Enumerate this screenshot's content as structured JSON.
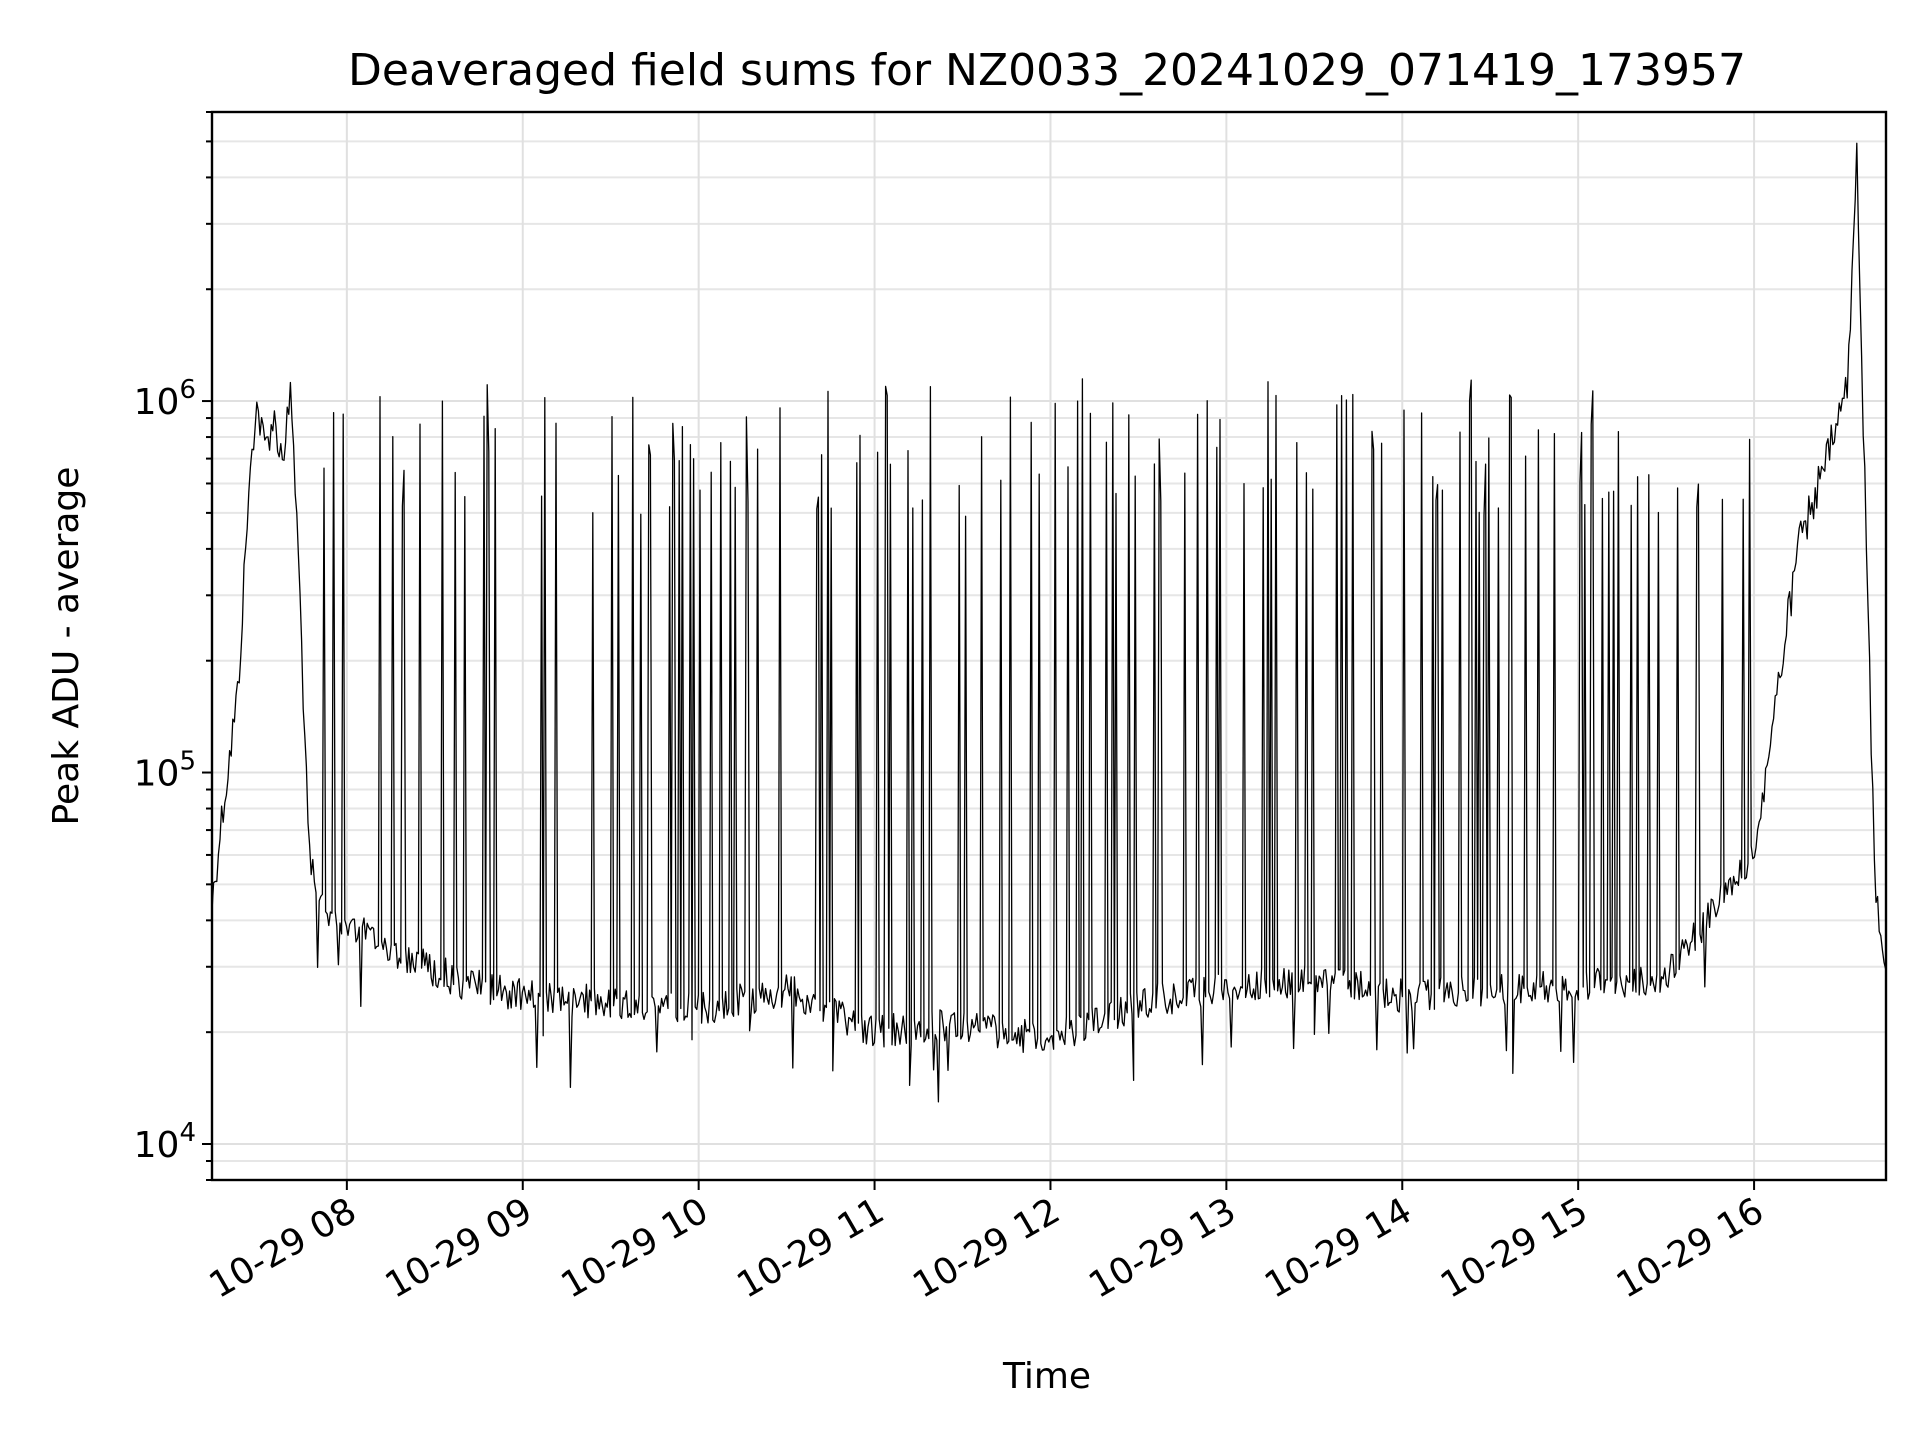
{
  "chart_data": {
    "type": "line",
    "title": "Deaveraged field sums for NZ0033_20241029_071419_173957",
    "xlabel": "Time",
    "ylabel": "Peak ADU - average",
    "y_scale": "log",
    "ylim": [
      8000,
      6000000
    ],
    "xlim": [
      "2024-10-29 07:14",
      "2024-10-29 16:45"
    ],
    "grid": "major and minor",
    "legend": "none",
    "line_color": "#000000",
    "x_ticks": [
      {
        "time": "2024-10-29 08:00",
        "label": "10-29 08"
      },
      {
        "time": "2024-10-29 09:00",
        "label": "10-29 09"
      },
      {
        "time": "2024-10-29 10:00",
        "label": "10-29 10"
      },
      {
        "time": "2024-10-29 11:00",
        "label": "10-29 11"
      },
      {
        "time": "2024-10-29 12:00",
        "label": "10-29 12"
      },
      {
        "time": "2024-10-29 13:00",
        "label": "10-29 13"
      },
      {
        "time": "2024-10-29 14:00",
        "label": "10-29 14"
      },
      {
        "time": "2024-10-29 15:00",
        "label": "10-29 15"
      },
      {
        "time": "2024-10-29 16:00",
        "label": "10-29 16"
      }
    ],
    "y_ticks": [
      {
        "value": 10000,
        "base": "10",
        "exp": "4"
      },
      {
        "value": 100000,
        "base": "10",
        "exp": "5"
      },
      {
        "value": 1000000,
        "base": "10",
        "exp": "6"
      }
    ],
    "series": [
      {
        "points": [
          [
            "2024-10-29 07:14",
            44000
          ],
          [
            "2024-10-29 07:17",
            72000
          ],
          [
            "2024-10-29 07:20",
            110000
          ],
          [
            "2024-10-29 07:23",
            170000
          ],
          [
            "2024-10-29 07:26",
            480000
          ],
          [
            "2024-10-29 07:29",
            1000000
          ],
          [
            "2024-10-29 07:32",
            750000
          ],
          [
            "2024-10-29 07:35",
            900000
          ],
          [
            "2024-10-29 07:38",
            700000
          ],
          [
            "2024-10-29 07:41",
            1050000
          ],
          [
            "2024-10-29 07:44",
            300000
          ],
          [
            "2024-10-29 07:47",
            60000
          ],
          [
            "2024-10-29 07:50",
            45000
          ],
          [
            "2024-10-29 08:00",
            40000
          ],
          [
            "2024-10-29 08:20",
            32000
          ],
          [
            "2024-10-29 08:40",
            27000
          ],
          [
            "2024-10-29 09:00",
            25000
          ],
          [
            "2024-10-29 09:30",
            24000
          ],
          [
            "2024-10-29 10:00",
            23000
          ],
          [
            "2024-10-29 10:30",
            26000
          ],
          [
            "2024-10-29 11:00",
            20000
          ],
          [
            "2024-10-29 11:30",
            21000
          ],
          [
            "2024-10-29 12:00",
            19000
          ],
          [
            "2024-10-29 12:30",
            24000
          ],
          [
            "2024-10-29 13:00",
            26000
          ],
          [
            "2024-10-29 13:30",
            28000
          ],
          [
            "2024-10-29 14:00",
            25000
          ],
          [
            "2024-10-29 14:30",
            26000
          ],
          [
            "2024-10-29 15:00",
            27000
          ],
          [
            "2024-10-29 15:30",
            28000
          ],
          [
            "2024-10-29 16:00",
            60000
          ],
          [
            "2024-10-29 16:15",
            400000
          ],
          [
            "2024-10-29 16:25",
            700000
          ],
          [
            "2024-10-29 16:32",
            1100000
          ],
          [
            "2024-10-29 16:35",
            4500000
          ],
          [
            "2024-10-29 16:38",
            500000
          ],
          [
            "2024-10-29 16:41",
            60000
          ],
          [
            "2024-10-29 16:43",
            33000
          ],
          [
            "2024-10-29 16:45",
            32000
          ]
        ]
      }
    ]
  }
}
